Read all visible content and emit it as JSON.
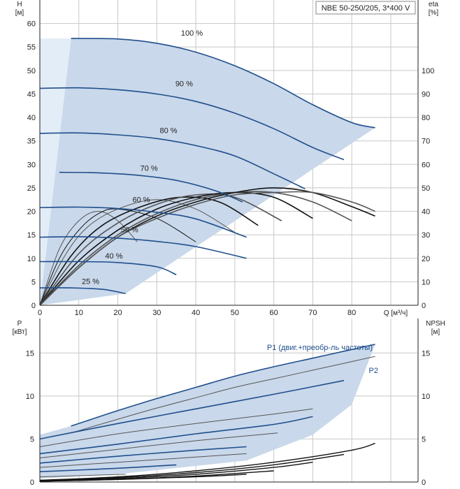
{
  "colors": {
    "envelope": "#c9d8ea",
    "envelope_light": "#e3edf7",
    "curve_blue": "#1f4e8c",
    "eff_black": "#111111",
    "grid": "#c8c8c8",
    "thin_curve": "#555555"
  },
  "chart_data": [
    {
      "type": "line",
      "name": "head-curve",
      "title": "NBE 50-250/205, 3*400 V",
      "ylabel_left": "H",
      "ylabel_left_unit": "[м]",
      "ylabel_right": "eta",
      "ylabel_right_unit": "[%]",
      "xlabel": "Q [м³/ч]",
      "xlim": [
        0,
        97
      ],
      "ylim": [
        0,
        65
      ],
      "xticks": [
        0,
        10,
        20,
        30,
        40,
        50,
        60,
        70,
        80
      ],
      "yticks_left": [
        0,
        5,
        10,
        15,
        20,
        25,
        30,
        35,
        40,
        45,
        50,
        55,
        60
      ],
      "yticks_right_values": [
        0,
        10,
        20,
        30,
        40,
        50,
        60,
        70,
        80,
        90,
        100
      ],
      "right_scale_factor": 0.5,
      "series": [
        {
          "name": "100 %",
          "x": [
            8,
            20,
            30,
            40,
            50,
            60,
            70,
            80,
            86
          ],
          "y": [
            56.8,
            56.7,
            55.8,
            53.9,
            51.0,
            47.2,
            42.7,
            38.9,
            37.8
          ]
        },
        {
          "name": "90 %",
          "x": [
            0,
            10,
            20,
            30,
            40,
            50,
            60,
            70,
            78
          ],
          "y": [
            46.2,
            46.3,
            45.9,
            45.0,
            43.4,
            40.9,
            37.6,
            33.6,
            31.0
          ]
        },
        {
          "name": "80 %",
          "x": [
            0,
            10,
            20,
            30,
            40,
            50,
            60,
            68
          ],
          "y": [
            36.6,
            36.7,
            36.3,
            35.5,
            34.0,
            31.8,
            28.0,
            24.8
          ]
        },
        {
          "name": "70 %",
          "x": [
            5,
            15,
            25,
            35,
            45,
            52
          ],
          "y": [
            28.3,
            28.2,
            27.7,
            26.6,
            24.4,
            22.0
          ]
        },
        {
          "name": "60 %",
          "x": [
            0,
            10,
            20,
            30,
            40,
            53
          ],
          "y": [
            20.8,
            20.9,
            20.6,
            19.8,
            18.4,
            14.5
          ]
        },
        {
          "name": "50 %",
          "x": [
            0,
            10,
            20,
            30,
            40,
            53
          ],
          "y": [
            14.5,
            14.6,
            14.3,
            13.6,
            12.5,
            10.0
          ]
        },
        {
          "name": "40 %",
          "x": [
            0,
            10,
            20,
            30,
            35
          ],
          "y": [
            9.3,
            9.3,
            9.1,
            8.2,
            6.5
          ]
        },
        {
          "name": "25 %",
          "x": [
            0,
            8,
            16,
            22
          ],
          "y": [
            3.7,
            3.7,
            3.4,
            2.5
          ]
        }
      ],
      "efficiency": [
        {
          "name": "eta-1",
          "x": [
            0,
            5,
            10,
            15,
            20,
            25
          ],
          "y": [
            0,
            24,
            36,
            40,
            36,
            27
          ]
        },
        {
          "name": "eta-2",
          "x": [
            0,
            5,
            10,
            15,
            20,
            30,
            40
          ],
          "y": [
            0,
            20,
            32,
            39,
            41,
            37,
            27
          ]
        },
        {
          "name": "eta-3",
          "x": [
            0,
            6,
            12,
            20,
            30,
            40,
            50
          ],
          "y": [
            0,
            20,
            33,
            41,
            45,
            41,
            31
          ]
        },
        {
          "name": "eta-4",
          "x": [
            0,
            8,
            16,
            26,
            36,
            46,
            56
          ],
          "y": [
            0,
            21,
            34,
            42,
            46,
            44,
            34
          ]
        },
        {
          "name": "eta-5",
          "x": [
            0,
            10,
            20,
            30,
            40,
            50,
            62
          ],
          "y": [
            0,
            22,
            35,
            43,
            47,
            46,
            36
          ]
        },
        {
          "name": "eta-6",
          "x": [
            0,
            10,
            20,
            30,
            40,
            50,
            60,
            70
          ],
          "y": [
            0,
            19,
            32,
            41,
            46,
            48,
            46,
            37
          ]
        },
        {
          "name": "eta-7",
          "x": [
            0,
            10,
            20,
            30,
            40,
            50,
            60,
            70,
            80
          ],
          "y": [
            0,
            17,
            30,
            39,
            45,
            48,
            48,
            44,
            36
          ]
        },
        {
          "name": "eta-8",
          "x": [
            0,
            10,
            20,
            30,
            40,
            50,
            60,
            70,
            80,
            86
          ],
          "y": [
            0,
            16,
            29,
            38,
            44,
            48,
            50,
            48,
            42,
            38
          ]
        },
        {
          "name": "eta-9",
          "x": [
            0,
            10,
            20,
            30,
            40,
            50,
            60,
            70,
            80,
            86
          ],
          "y": [
            0,
            16,
            29,
            37,
            43,
            47,
            48,
            48,
            44,
            40
          ]
        }
      ],
      "efficiency_labels": [
        "100 %",
        "90 %",
        "80 %",
        "70 %",
        "60 %",
        "50 %",
        "40 %",
        "25 %"
      ]
    },
    {
      "type": "line",
      "name": "power-curve",
      "ylabel_left": "P",
      "ylabel_left_unit": "[кВт]",
      "ylabel_right": "NPSH",
      "ylabel_right_unit": "[м]",
      "xlim": [
        0,
        97
      ],
      "ylim": [
        0,
        19
      ],
      "yticks_left": [
        0,
        5,
        10,
        15
      ],
      "yticks_right": [
        0,
        5,
        10,
        15
      ],
      "series_labels": {
        "p1": "P1 (двиг.+преобр-ль частоты)",
        "p2": "P2"
      },
      "p1": {
        "x": [
          8,
          20,
          30,
          40,
          50,
          60,
          70,
          80,
          86
        ],
        "y": [
          6.5,
          8.3,
          9.7,
          11.0,
          12.3,
          13.4,
          14.4,
          15.4,
          16.0
        ]
      },
      "p2": {
        "x": [
          8,
          20,
          30,
          40,
          50,
          60,
          70,
          80,
          86
        ],
        "y": [
          5.7,
          7.3,
          8.6,
          9.8,
          11.0,
          12.0,
          13.0,
          14.0,
          14.6
        ]
      },
      "speeds": [
        {
          "x": [
            0,
            20,
            40,
            60,
            78
          ],
          "y": [
            5.0,
            6.8,
            8.5,
            10.2,
            11.8
          ]
        },
        {
          "x": [
            0,
            20,
            40,
            60,
            70
          ],
          "y": [
            4.1,
            5.6,
            6.8,
            7.9,
            8.5
          ]
        },
        {
          "x": [
            0,
            20,
            40,
            60,
            70
          ],
          "y": [
            3.3,
            4.4,
            5.6,
            6.7,
            7.6
          ]
        },
        {
          "x": [
            0,
            20,
            40,
            61
          ],
          "y": [
            2.8,
            3.8,
            4.8,
            5.7
          ]
        },
        {
          "x": [
            0,
            20,
            40,
            53
          ],
          "y": [
            2.2,
            3.0,
            3.7,
            4.1
          ]
        },
        {
          "x": [
            0,
            20,
            40,
            53
          ],
          "y": [
            1.7,
            2.3,
            2.9,
            3.3
          ]
        },
        {
          "x": [
            0,
            20,
            35
          ],
          "y": [
            1.2,
            1.6,
            2.0
          ]
        },
        {
          "x": [
            0,
            22
          ],
          "y": [
            0.6,
            0.9
          ]
        }
      ],
      "npsh": [
        {
          "x": [
            0,
            20,
            40,
            60,
            80,
            86
          ],
          "y": [
            0.2,
            0.6,
            1.3,
            2.3,
            3.7,
            4.5
          ]
        },
        {
          "x": [
            0,
            20,
            40,
            60,
            78
          ],
          "y": [
            0.2,
            0.5,
            1.1,
            2.0,
            3.2
          ]
        },
        {
          "x": [
            0,
            20,
            40,
            60,
            70
          ],
          "y": [
            0.1,
            0.4,
            0.9,
            1.7,
            2.3
          ]
        },
        {
          "x": [
            0,
            20,
            40,
            60
          ],
          "y": [
            0.1,
            0.3,
            0.7,
            1.3
          ]
        },
        {
          "x": [
            0,
            20,
            40,
            53
          ],
          "y": [
            0.1,
            0.3,
            0.6,
            0.9
          ]
        }
      ]
    }
  ]
}
